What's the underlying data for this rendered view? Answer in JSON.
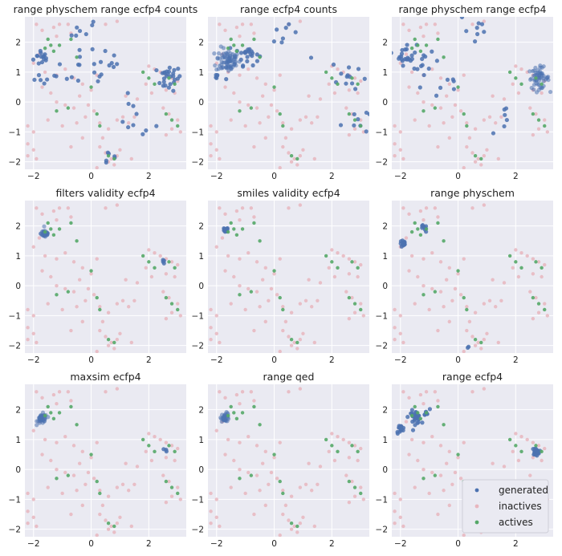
{
  "chart_data": {
    "type": "scatter",
    "layout": "3x3 grid of panels",
    "colors": {
      "background": "#EAEAF2",
      "grid": "#FFFFFF",
      "generated": "#4C72B0",
      "inactives": "#E8B6BE",
      "actives": "#55A868"
    },
    "legend": {
      "placement": "lower-right of last panel",
      "entries": [
        {
          "name": "generated",
          "color": "#4C72B0"
        },
        {
          "name": "inactives",
          "color": "#E8B6BE"
        },
        {
          "name": "actives",
          "color": "#55A868"
        }
      ]
    },
    "xlim": [
      -2.3,
      3.3
    ],
    "ylim": [
      -2.25,
      2.85
    ],
    "xticks": [
      -2,
      0,
      2
    ],
    "yticks": [
      -2,
      -1,
      0,
      1,
      2
    ],
    "grid": true,
    "background_points": {
      "inactives": [
        [
          -1.9,
          2.6
        ],
        [
          -1.7,
          2.4
        ],
        [
          -1.3,
          2.5
        ],
        [
          -1.2,
          2.2
        ],
        [
          -1.1,
          2.6
        ],
        [
          -0.8,
          2.6
        ],
        [
          -0.7,
          2.3
        ],
        [
          -1.8,
          1.6
        ],
        [
          -2.0,
          1.3
        ],
        [
          -1.6,
          1.0
        ],
        [
          -1.2,
          0.9
        ],
        [
          -0.9,
          1.1
        ],
        [
          -0.6,
          0.8
        ],
        [
          -0.3,
          0.6
        ],
        [
          -1.7,
          0.5
        ],
        [
          -1.4,
          0.3
        ],
        [
          -1.2,
          0.0
        ],
        [
          -0.9,
          -0.1
        ],
        [
          -0.6,
          -0.2
        ],
        [
          -0.4,
          0.2
        ],
        [
          -0.1,
          -0.1
        ],
        [
          0.1,
          -0.3
        ],
        [
          -0.2,
          -0.5
        ],
        [
          0.3,
          -0.7
        ],
        [
          0.6,
          -0.9
        ],
        [
          0.9,
          -0.6
        ],
        [
          1.1,
          -0.5
        ],
        [
          1.3,
          -0.7
        ],
        [
          1.5,
          -0.5
        ],
        [
          -2.2,
          -0.8
        ],
        [
          -2.0,
          -1.0
        ],
        [
          -2.2,
          -1.4
        ],
        [
          -2.0,
          -1.6
        ],
        [
          -2.2,
          -1.8
        ],
        [
          -1.9,
          -1.9
        ],
        [
          0.3,
          -1.5
        ],
        [
          0.5,
          -1.7
        ],
        [
          0.7,
          -1.9
        ],
        [
          0.9,
          -1.8
        ],
        [
          0.6,
          -2.0
        ],
        [
          0.8,
          -2.1
        ],
        [
          1.0,
          -1.6
        ],
        [
          0.4,
          -1.2
        ],
        [
          2.0,
          1.2
        ],
        [
          2.2,
          1.1
        ],
        [
          2.4,
          1.0
        ],
        [
          2.6,
          0.9
        ],
        [
          2.8,
          0.8
        ],
        [
          3.0,
          0.7
        ],
        [
          2.6,
          0.4
        ],
        [
          2.9,
          0.3
        ],
        [
          2.5,
          -0.2
        ],
        [
          2.7,
          -0.4
        ],
        [
          3.0,
          -0.6
        ],
        [
          2.8,
          -0.9
        ],
        [
          3.1,
          -1.0
        ],
        [
          2.6,
          -1.1
        ],
        [
          1.9,
          0.6
        ],
        [
          2.1,
          0.3
        ],
        [
          -1.5,
          -0.6
        ],
        [
          -1.0,
          -0.8
        ],
        [
          -0.5,
          -0.7
        ],
        [
          0.0,
          0.4
        ],
        [
          0.2,
          0.9
        ],
        [
          0.9,
          2.7
        ],
        [
          0.5,
          2.6
        ],
        [
          1.2,
          0.2
        ],
        [
          1.6,
          0.1
        ],
        [
          -0.3,
          -1.2
        ],
        [
          -0.7,
          -1.5
        ],
        [
          1.4,
          -1.9
        ],
        [
          0.2,
          -2.2
        ]
      ],
      "actives": [
        [
          -1.5,
          2.1
        ],
        [
          -1.4,
          1.9
        ],
        [
          -1.6,
          1.8
        ],
        [
          -1.3,
          1.7
        ],
        [
          -1.1,
          1.9
        ],
        [
          -0.7,
          2.1
        ],
        [
          -0.5,
          1.5
        ],
        [
          0.0,
          0.5
        ],
        [
          0.2,
          -0.4
        ],
        [
          -1.2,
          -0.3
        ],
        [
          -0.8,
          -0.2
        ],
        [
          0.3,
          -0.8
        ],
        [
          0.6,
          -1.8
        ],
        [
          0.8,
          -1.9
        ],
        [
          1.8,
          1.0
        ],
        [
          2.0,
          0.8
        ],
        [
          2.2,
          0.6
        ],
        [
          2.7,
          0.8
        ],
        [
          2.9,
          0.6
        ],
        [
          3.0,
          -0.8
        ],
        [
          2.8,
          -0.6
        ],
        [
          2.6,
          -0.4
        ]
      ]
    },
    "panels": [
      {
        "title": "range physchem range ecfp4 counts",
        "generated_clusters": [
          {
            "x": -1.7,
            "y": 1.5,
            "spread": 0.25,
            "n": 14
          },
          {
            "x": -0.3,
            "y": 2.3,
            "spread": 0.5,
            "n": 10
          },
          {
            "x": 0.6,
            "y": 1.1,
            "spread": 0.5,
            "n": 12
          },
          {
            "x": -0.8,
            "y": 0.9,
            "spread": 0.4,
            "n": 8
          },
          {
            "x": 2.7,
            "y": 0.8,
            "spread": 0.35,
            "n": 26
          },
          {
            "x": 1.5,
            "y": -0.6,
            "spread": 0.6,
            "n": 10
          },
          {
            "x": 0.6,
            "y": -1.8,
            "spread": 0.3,
            "n": 6
          },
          {
            "x": -1.8,
            "y": 0.6,
            "spread": 0.3,
            "n": 5
          }
        ]
      },
      {
        "title": "range ecfp4 counts",
        "generated_clusters": [
          {
            "x": -1.6,
            "y": 1.4,
            "spread": 0.35,
            "n": 80
          },
          {
            "x": -0.9,
            "y": 1.6,
            "spread": 0.3,
            "n": 22
          },
          {
            "x": 0.3,
            "y": 2.2,
            "spread": 0.6,
            "n": 10
          },
          {
            "x": 2.6,
            "y": 0.9,
            "spread": 0.5,
            "n": 12
          },
          {
            "x": 2.8,
            "y": -0.6,
            "spread": 0.4,
            "n": 8
          },
          {
            "x": -2.0,
            "y": 0.8,
            "spread": 0.2,
            "n": 6
          }
        ]
      },
      {
        "title": "range physchem range ecfp4",
        "generated_clusters": [
          {
            "x": -1.8,
            "y": 1.6,
            "spread": 0.3,
            "n": 22
          },
          {
            "x": -1.1,
            "y": 1.2,
            "spread": 0.35,
            "n": 12
          },
          {
            "x": 0.6,
            "y": 2.4,
            "spread": 0.5,
            "n": 8
          },
          {
            "x": 2.8,
            "y": 0.8,
            "spread": 0.3,
            "n": 55
          },
          {
            "x": 1.7,
            "y": -0.6,
            "spread": 0.4,
            "n": 6
          },
          {
            "x": -0.4,
            "y": 0.5,
            "spread": 0.4,
            "n": 6
          }
        ]
      },
      {
        "title": "filters validity ecfp4",
        "generated_clusters": [
          {
            "x": -1.6,
            "y": 1.75,
            "spread": 0.12,
            "n": 40
          },
          {
            "x": 2.5,
            "y": 0.8,
            "spread": 0.05,
            "n": 4
          }
        ]
      },
      {
        "title": "smiles validity ecfp4",
        "generated_clusters": [
          {
            "x": -1.7,
            "y": 1.85,
            "spread": 0.08,
            "n": 14
          }
        ]
      },
      {
        "title": "range physchem",
        "generated_clusters": [
          {
            "x": -1.9,
            "y": 1.4,
            "spread": 0.1,
            "n": 14
          },
          {
            "x": -1.2,
            "y": 1.9,
            "spread": 0.1,
            "n": 8
          },
          {
            "x": 0.4,
            "y": -2.05,
            "spread": 0.04,
            "n": 2
          }
        ]
      },
      {
        "title": "maxsim ecfp4",
        "generated_clusters": [
          {
            "x": -1.7,
            "y": 1.7,
            "spread": 0.14,
            "n": 45
          },
          {
            "x": 2.6,
            "y": 0.65,
            "spread": 0.05,
            "n": 3
          }
        ]
      },
      {
        "title": "range qed",
        "generated_clusters": [
          {
            "x": -1.7,
            "y": 1.75,
            "spread": 0.12,
            "n": 32
          }
        ]
      },
      {
        "title": "range ecfp4",
        "generated_clusters": [
          {
            "x": -2.0,
            "y": 1.35,
            "spread": 0.12,
            "n": 16
          },
          {
            "x": -1.5,
            "y": 1.75,
            "spread": 0.18,
            "n": 30
          },
          {
            "x": 2.7,
            "y": 0.6,
            "spread": 0.1,
            "n": 22
          },
          {
            "x": -1.1,
            "y": 1.9,
            "spread": 0.1,
            "n": 6
          }
        ]
      }
    ]
  }
}
